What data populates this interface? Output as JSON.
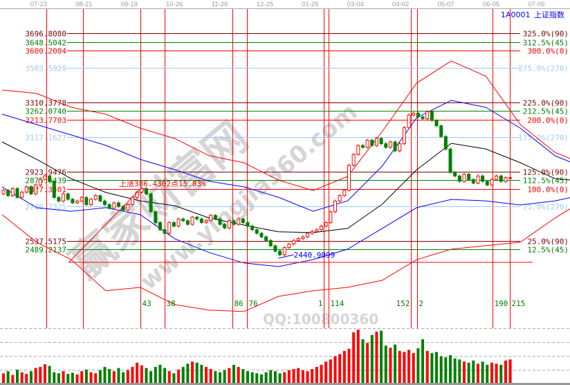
{
  "header": {
    "code": "1A0001",
    "name": "上证指数"
  },
  "date_axis": [
    "07-23",
    "08-21",
    "09-19",
    "10-26",
    "11-26",
    "12-25",
    "01-25",
    "03-04",
    "04-02",
    "05-07",
    "06-05",
    "07-05"
  ],
  "watermarks": {
    "logo": "赢家财富网",
    "site": "www.yingjia360.com",
    "qq": "QQ:100800360"
  },
  "colors": {
    "up": "#ff0000",
    "down": "#008000",
    "angle_90": "#800000",
    "angle_45": "#008000",
    "angle_0": "#ff0000",
    "angle_270": "#a0c8f0",
    "cycle_line": "#ff0000",
    "cycle_label": "#008000"
  },
  "chart_data": {
    "type": "candlestick",
    "ylim": [
      2050,
      3836
    ],
    "closes": [
      2820,
      2790,
      2830,
      2780,
      2810,
      2840,
      2800,
      2850,
      2880,
      2900,
      2870,
      2780,
      2760,
      2800,
      2770,
      2750,
      2760,
      2780,
      2740,
      2770,
      2790,
      2760,
      2740,
      2720,
      2750,
      2730,
      2710,
      2740,
      2780,
      2810,
      2830,
      2800,
      2700,
      2640,
      2600,
      2580,
      2640,
      2620,
      2660,
      2650,
      2630,
      2670,
      2660,
      2640,
      2650,
      2680,
      2660,
      2630,
      2610,
      2650,
      2630,
      2660,
      2640,
      2620,
      2600,
      2580,
      2560,
      2540,
      2510,
      2480,
      2460,
      2500,
      2520,
      2540,
      2550,
      2560,
      2580,
      2590,
      2600,
      2620,
      2640,
      2700,
      2760,
      2790,
      2820,
      2960,
      3020,
      3070,
      3060,
      3100,
      3070,
      3110,
      3080,
      3060,
      3090,
      3040,
      3080,
      3170,
      3240,
      3250,
      3230,
      3220,
      3260,
      3210,
      3180,
      3120,
      3050,
      2920,
      2900,
      2870,
      2910,
      2880,
      2860,
      2900,
      2870,
      2850,
      2880,
      2900,
      2870,
      2890,
      2890
    ],
    "volume": [
      18,
      22,
      15,
      25,
      20,
      17,
      22,
      28,
      30,
      35,
      32,
      20,
      18,
      22,
      17,
      19,
      16,
      22,
      25,
      20,
      18,
      24,
      30,
      26,
      22,
      28,
      20,
      24,
      30,
      38,
      33,
      28,
      22,
      30,
      34,
      28,
      22,
      18,
      25,
      30,
      36,
      40,
      38,
      34,
      30,
      26,
      22,
      20,
      24,
      28,
      34,
      30,
      26,
      22,
      20,
      18,
      16,
      20,
      24,
      22,
      18,
      20,
      24,
      26,
      28,
      24,
      22,
      26,
      30,
      34,
      40,
      44,
      50,
      54,
      60,
      64,
      95,
      100,
      82,
      75,
      90,
      96,
      98,
      70,
      66,
      72,
      60,
      58,
      62,
      56,
      65,
      82,
      60,
      56,
      58,
      50,
      48,
      52,
      46,
      44,
      40,
      38,
      42,
      36,
      40,
      34,
      38,
      36,
      34,
      42,
      44
    ],
    "band_x": [
      0,
      7.5,
      15,
      22.5,
      30,
      37.5,
      45,
      52.5,
      60,
      67.5,
      75,
      82.5,
      90,
      97.5,
      105,
      112.5,
      120,
      123.7
    ],
    "bands": [
      {
        "color": "#ff0000",
        "values": [
          3380,
          3361,
          3283,
          3245,
          3167,
          3109,
          3013,
          2974,
          2877,
          2819,
          2897,
          3148,
          3419,
          3542,
          3457,
          3187,
          3032,
          2993
        ]
      },
      {
        "color": "#0000ff",
        "values": [
          3245,
          3187,
          3129,
          3071,
          2993,
          2935,
          2870,
          2839,
          2781,
          2703,
          2761,
          2955,
          3225,
          3322,
          3283,
          3167,
          3013,
          2974
        ]
      },
      {
        "color": "#000000",
        "values": [
          3090,
          2993,
          2885,
          2808,
          2761,
          2734,
          2665,
          2626,
          2588,
          2584,
          2607,
          2742,
          2935,
          3082,
          3051,
          2974,
          2885,
          2877
        ]
      },
      {
        "color": "#0000ff",
        "values": [
          2839,
          2723,
          2703,
          2723,
          2684,
          2549,
          2472,
          2414,
          2394,
          2433,
          2491,
          2607,
          2723,
          2769,
          2761,
          2738,
          2761,
          2781
        ]
      },
      {
        "color": "#ff0000",
        "values": [
          2684,
          2530,
          2433,
          2259,
          2278,
          2182,
          2151,
          2143,
          2228,
          2259,
          2278,
          2317,
          2433,
          2491,
          2511,
          2530,
          2665,
          2723
        ]
      }
    ],
    "levels": [
      {
        "price": "3696.8080",
        "pct": "325.0%(90)",
        "angle": 90
      },
      {
        "price": "3648.5042",
        "pct": "312.5%(45)",
        "angle": 45
      },
      {
        "price": "3600.2004",
        "pct": "300.0%(0)",
        "angle": 0
      },
      {
        "price": "3503.5929",
        "pct": "275.0%(270)",
        "angle": 270
      },
      {
        "price": "3310.3778",
        "pct": "225.0%(90)",
        "angle": 90
      },
      {
        "price": "3262.0740",
        "pct": "212.5%(45)",
        "angle": 45
      },
      {
        "price": "3213.7703",
        "pct": "200.0%(0)",
        "angle": 0
      },
      {
        "price": "3117.1627",
        "pct": "175.0%(270)",
        "angle": 270
      },
      {
        "price": "2923.9476",
        "pct": "125.0%(90)",
        "angle": 90
      },
      {
        "price": "2875.6439",
        "pct": "112.5%(45)",
        "angle": 45
      },
      {
        "price": "2827.3401",
        "pct": "100.0%(0)",
        "angle": 0
      },
      {
        "price": "2730.7325",
        "pct": "75.0%(270)",
        "angle": 270
      },
      {
        "price": "2537.5175",
        "pct": "25.0%(90)",
        "angle": 90
      },
      {
        "price": "2489.2137",
        "pct": "12.5%(45)",
        "angle": 45
      }
    ],
    "cycle_lines": [
      {
        "bar": 9.6,
        "label": ""
      },
      {
        "bar": 17.6,
        "label": ""
      },
      {
        "bar": 30,
        "label": "43"
      },
      {
        "bar": 35.3,
        "label": "38"
      },
      {
        "bar": 50,
        "label": "86"
      },
      {
        "bar": 53.2,
        "label": "76"
      },
      {
        "bar": 69.8,
        "label": "1"
      },
      {
        "bar": 70.9,
        "label": "114"
      },
      {
        "bar": 88.7,
        "label": "152"
      },
      {
        "bar": 90.1,
        "label": "2"
      },
      {
        "bar": 106.5,
        "label": "190"
      },
      {
        "bar": 110.2,
        "label": "215"
      }
    ],
    "annotations": {
      "rise_label": "上涨386.4302点15.83%",
      "low_label": "2440.9099",
      "low_price": 2440.9099,
      "low_bar": 60,
      "rise_start_bar": 14.5,
      "rise_end_bar": 30,
      "base_price": 2440.9099
    }
  }
}
